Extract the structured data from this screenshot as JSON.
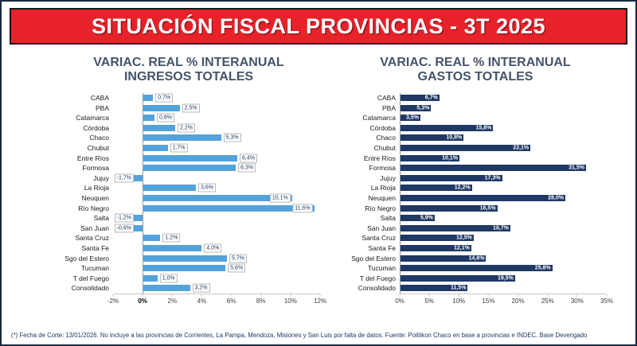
{
  "header": {
    "title": "SITUACIÓN FISCAL PROVINCIAS - 3T 2025"
  },
  "footer": {
    "note": "(*) Fecha de Corte: 13/01/2026. No incluye a las provincias de Corrientes, La Pampa, Mendoza, Misiones y San Luis por falta de datos. Fuente: Politikon Chaco en base a provincias e INDEC. Base Devengado"
  },
  "colors": {
    "banner_red": "#E8222A",
    "ingresos_blue": "#54A2DB",
    "gastos_navy": "#1F3864",
    "title_gray": "#44546A",
    "label_navy": "#17365D"
  },
  "chart_data": [
    {
      "type": "bar",
      "orientation": "horizontal",
      "title": "VARIAC. REAL % INTERANUAL INGRESOS TOTALES",
      "title_lines": [
        "VARIAC. REAL % INTERANUAL",
        "INGRESOS TOTALES"
      ],
      "categories": [
        "CABA",
        "PBA",
        "Catamarca",
        "Córdoba",
        "Chaco",
        "Chubut",
        "Entre Ríos",
        "Formosa",
        "Jujuy",
        "La Rioja",
        "Neuquen",
        "Río Negro",
        "Salta",
        "San Juan",
        "Santa Cruz",
        "Santa Fe",
        "Sgo del Estero",
        "Tucuman",
        "T del Fuego",
        "Consolidado"
      ],
      "values": [
        0.7,
        2.5,
        0.8,
        2.2,
        5.3,
        1.7,
        6.4,
        6.3,
        -1.7,
        3.6,
        10.1,
        11.6,
        -1.2,
        -0.6,
        1.2,
        4.0,
        5.7,
        5.6,
        1.0,
        3.2
      ],
      "labels": [
        "0,7%",
        "2,5%",
        "0,8%",
        "2,2%",
        "5,3%",
        "1,7%",
        "6,4%",
        "6,3%",
        "-1,7%",
        "3,6%",
        "10,1%",
        "11,6%",
        "-1,2%",
        "-0,6%",
        "1,2%",
        "4,0%",
        "5,7%",
        "5,6%",
        "1,0%",
        "3,2%"
      ],
      "xlim": [
        -2,
        12
      ],
      "tick_values": [
        -2,
        0,
        2,
        4,
        6,
        8,
        10,
        12
      ],
      "tick_labels": [
        "-2%",
        "0%",
        "2%",
        "4%",
        "6%",
        "8%",
        "10%",
        "12%"
      ],
      "bold_tick": "0%",
      "bar_color": "#54A2DB",
      "label_style": "boxed",
      "label_inside_min": 9,
      "grid": false,
      "legend": false
    },
    {
      "type": "bar",
      "orientation": "horizontal",
      "title": "VARIAC. REAL % INTERANUAL GASTOS TOTALES",
      "title_lines": [
        "VARIAC. REAL % INTERANUAL",
        "GASTOS TOTALES"
      ],
      "categories": [
        "CABA",
        "PBA",
        "Catamarca",
        "Córdoba",
        "Chaco",
        "Chubut",
        "Entre Ríos",
        "Formosa",
        "Jujuy",
        "La Rioja",
        "Neuquen",
        "Río Negro",
        "Salta",
        "San Juan",
        "Santa Cruz",
        "Santa Fe",
        "Sgo del Estero",
        "Tucuman",
        "T del Fuego",
        "Consolidado"
      ],
      "values": [
        6.7,
        5.3,
        3.5,
        15.8,
        10.8,
        22.1,
        10.1,
        31.5,
        17.3,
        12.2,
        28.0,
        16.5,
        5.9,
        18.7,
        12.5,
        12.1,
        14.6,
        25.8,
        19.5,
        11.5
      ],
      "labels": [
        "6,7%",
        "5,3%",
        "3,5%",
        "15,8%",
        "10,8%",
        "22,1%",
        "10,1%",
        "31,5%",
        "17,3%",
        "12,2%",
        "28,0%",
        "16,5%",
        "5,9%",
        "18,7%",
        "12,5%",
        "12,1%",
        "14,6%",
        "25,8%",
        "19,5%",
        "11,5%"
      ],
      "xlim": [
        0,
        35
      ],
      "tick_values": [
        0,
        5,
        10,
        15,
        20,
        25,
        30,
        35
      ],
      "tick_labels": [
        "0%",
        "5%",
        "10%",
        "15%",
        "20%",
        "25%",
        "30%",
        "35%"
      ],
      "bold_tick": null,
      "bar_color": "#1F3864",
      "label_style": "inside",
      "grid": false,
      "legend": false
    }
  ]
}
